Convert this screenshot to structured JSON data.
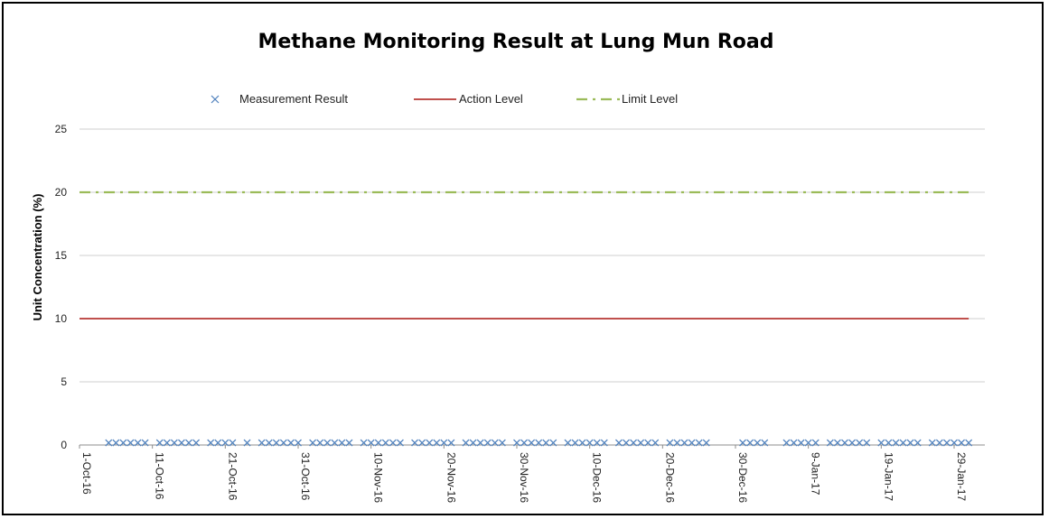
{
  "chart_data": {
    "type": "line",
    "title": "Methane Monitoring Result at Lung Mun Road",
    "ylabel": "Unit Concentration (%)",
    "xlabel": "",
    "ylim": [
      0,
      25
    ],
    "yticks": [
      0,
      5,
      10,
      15,
      20,
      25
    ],
    "grid": true,
    "legend_position": "top",
    "x_range": [
      "2016-10-01",
      "2017-01-29"
    ],
    "xtick_labels": [
      "1-Oct-16",
      "11-Oct-16",
      "21-Oct-16",
      "31-Oct-16",
      "10-Nov-16",
      "20-Nov-16",
      "30-Nov-16",
      "10-Dec-16",
      "20-Dec-16",
      "30-Dec-16",
      "9-Jan-17",
      "19-Jan-17",
      "29-Jan-17"
    ],
    "xtick_dates": [
      "2016-10-01",
      "2016-10-11",
      "2016-10-21",
      "2016-10-31",
      "2016-11-10",
      "2016-11-20",
      "2016-11-30",
      "2016-12-10",
      "2016-12-20",
      "2016-12-30",
      "2017-01-09",
      "2017-01-19",
      "2017-01-29"
    ],
    "series": [
      {
        "name": "Measurement Result",
        "kind": "scatter",
        "marker": "x",
        "color": "#4f81bd",
        "x": [
          "2016-10-05",
          "2016-10-06",
          "2016-10-07",
          "2016-10-08",
          "2016-10-09",
          "2016-10-10",
          "2016-10-12",
          "2016-10-13",
          "2016-10-14",
          "2016-10-15",
          "2016-10-16",
          "2016-10-17",
          "2016-10-19",
          "2016-10-20",
          "2016-10-21",
          "2016-10-22",
          "2016-10-24",
          "2016-10-26",
          "2016-10-27",
          "2016-10-28",
          "2016-10-29",
          "2016-10-30",
          "2016-10-31",
          "2016-11-02",
          "2016-11-03",
          "2016-11-04",
          "2016-11-05",
          "2016-11-06",
          "2016-11-07",
          "2016-11-09",
          "2016-11-10",
          "2016-11-11",
          "2016-11-12",
          "2016-11-13",
          "2016-11-14",
          "2016-11-16",
          "2016-11-17",
          "2016-11-18",
          "2016-11-19",
          "2016-11-20",
          "2016-11-21",
          "2016-11-23",
          "2016-11-24",
          "2016-11-25",
          "2016-11-26",
          "2016-11-27",
          "2016-11-28",
          "2016-11-30",
          "2016-12-01",
          "2016-12-02",
          "2016-12-03",
          "2016-12-04",
          "2016-12-05",
          "2016-12-07",
          "2016-12-08",
          "2016-12-09",
          "2016-12-10",
          "2016-12-11",
          "2016-12-12",
          "2016-12-14",
          "2016-12-15",
          "2016-12-16",
          "2016-12-17",
          "2016-12-18",
          "2016-12-19",
          "2016-12-21",
          "2016-12-22",
          "2016-12-23",
          "2016-12-24",
          "2016-12-25",
          "2016-12-26",
          "2016-12-31",
          "2017-01-01",
          "2017-01-02",
          "2017-01-03",
          "2017-01-06",
          "2017-01-07",
          "2017-01-08",
          "2017-01-09",
          "2017-01-10",
          "2017-01-12",
          "2017-01-13",
          "2017-01-14",
          "2017-01-15",
          "2017-01-16",
          "2017-01-17",
          "2017-01-19",
          "2017-01-20",
          "2017-01-21",
          "2017-01-22",
          "2017-01-23",
          "2017-01-24",
          "2017-01-26",
          "2017-01-27",
          "2017-01-28",
          "2017-01-29",
          "2017-01-30",
          "2017-01-31"
        ],
        "y_constant": 0.1
      },
      {
        "name": "Action Level",
        "kind": "line",
        "style": "solid",
        "color": "#c0504d",
        "x": [
          "2016-10-01",
          "2017-01-31"
        ],
        "values": [
          10,
          10
        ]
      },
      {
        "name": "Limit Level",
        "kind": "line",
        "style": "dash-dot",
        "color": "#9bbb59",
        "x": [
          "2016-10-01",
          "2017-01-31"
        ],
        "values": [
          20,
          20
        ]
      }
    ]
  }
}
